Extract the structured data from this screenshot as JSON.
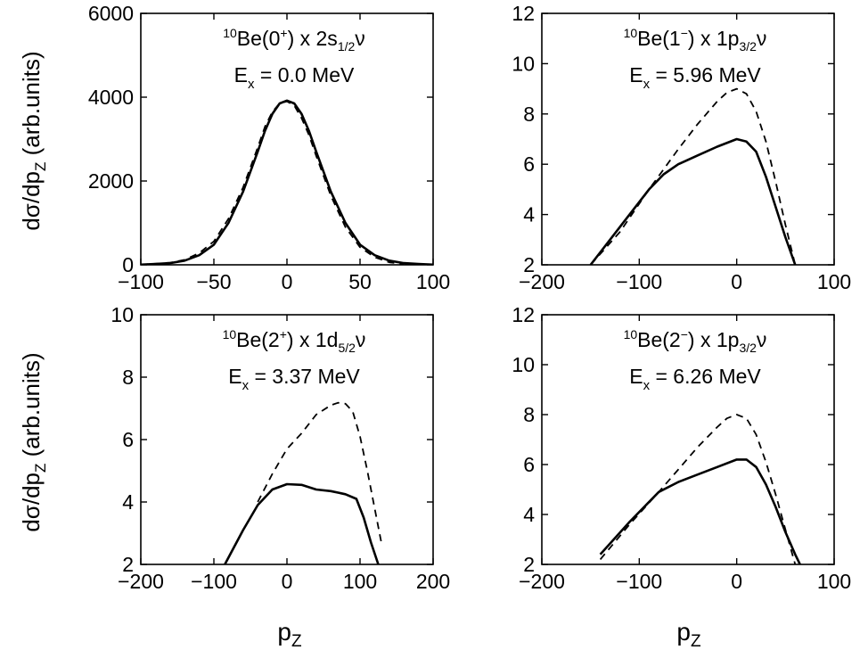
{
  "figure": {
    "ylabel_text": "dσ/dp",
    "ylabel_sub": "Z",
    "ylabel_suffix": " (arb.units)",
    "xlabel_text": "p",
    "xlabel_sub": "Z"
  },
  "chart_data": [
    {
      "type": "line",
      "position": "top-left",
      "annotation": {
        "state": {
          "pre": "10",
          "base": "Be(0",
          "sup": "+",
          "post": ") x 2s",
          "sub": "1/2",
          "end": "ν"
        },
        "energy": {
          "base": "E",
          "sub": "x",
          "value": " = 0.0 MeV"
        }
      },
      "xlim": [
        -100,
        100
      ],
      "ylim": [
        0,
        6000
      ],
      "x_ticks": [
        -100,
        -50,
        0,
        50,
        100
      ],
      "y_ticks": [
        0,
        2000,
        4000,
        6000
      ],
      "x_tick_labels": [
        "−100",
        "−50",
        "0",
        "50",
        "100"
      ],
      "y_tick_labels": [
        "0",
        "2000",
        "4000",
        "6000"
      ],
      "series": [
        {
          "style": "solid",
          "x": [
            -100,
            -90,
            -80,
            -70,
            -60,
            -50,
            -40,
            -30,
            -20,
            -15,
            -10,
            -5,
            0,
            5,
            10,
            15,
            20,
            30,
            40,
            50,
            60,
            70,
            80,
            90,
            100
          ],
          "y": [
            5,
            20,
            40,
            100,
            230,
            480,
            1000,
            1750,
            2700,
            3200,
            3600,
            3850,
            3920,
            3850,
            3600,
            3200,
            2700,
            1750,
            1000,
            480,
            230,
            100,
            40,
            20,
            5
          ]
        },
        {
          "style": "dashed",
          "x": [
            -100,
            -90,
            -80,
            -70,
            -60,
            -50,
            -40,
            -30,
            -20,
            -15,
            -10,
            -5,
            0,
            5,
            10,
            15,
            20,
            30,
            40,
            50,
            60,
            70,
            80
          ],
          "y": [
            5,
            25,
            50,
            120,
            280,
            560,
            1100,
            1850,
            2800,
            3300,
            3650,
            3850,
            3900,
            3800,
            3500,
            3100,
            2600,
            1650,
            900,
            420,
            180,
            60,
            15
          ]
        }
      ]
    },
    {
      "type": "line",
      "position": "top-right",
      "annotation": {
        "state": {
          "pre": "10",
          "base": "Be(1",
          "sup": "−",
          "post": ") x 1p",
          "sub": "3/2",
          "end": "ν"
        },
        "energy": {
          "base": "E",
          "sub": "x",
          "value": " = 5.96 MeV"
        }
      },
      "xlim": [
        -200,
        100
      ],
      "ylim": [
        2,
        12
      ],
      "x_ticks": [
        -200,
        -100,
        0,
        100
      ],
      "y_ticks": [
        2,
        4,
        6,
        8,
        10,
        12
      ],
      "x_tick_labels": [
        "−200",
        "−100",
        "0",
        "100"
      ],
      "y_tick_labels": [
        "2",
        "4",
        "6",
        "8",
        "10",
        "12"
      ],
      "series": [
        {
          "style": "solid",
          "x": [
            -150,
            -120,
            -90,
            -75,
            -60,
            -40,
            -20,
            0,
            10,
            20,
            30,
            40,
            50,
            60
          ],
          "y": [
            2,
            3.5,
            5.0,
            5.6,
            6.0,
            6.35,
            6.7,
            7.0,
            6.9,
            6.5,
            5.5,
            4.3,
            3.1,
            2.0
          ]
        },
        {
          "style": "dashed",
          "x": [
            -150,
            -120,
            -90,
            -60,
            -40,
            -20,
            -10,
            0,
            10,
            20,
            30,
            40,
            50,
            60
          ],
          "y": [
            2,
            3.3,
            5.0,
            6.6,
            7.6,
            8.5,
            8.85,
            9.0,
            8.8,
            8.1,
            6.9,
            5.3,
            3.6,
            2.0
          ]
        }
      ]
    },
    {
      "type": "line",
      "position": "bottom-left",
      "annotation": {
        "state": {
          "pre": "10",
          "base": "Be(2",
          "sup": "+",
          "post": ") x 1d",
          "sub": "5/2",
          "end": "ν"
        },
        "energy": {
          "base": "E",
          "sub": "x",
          "value": " = 3.37 MeV"
        }
      },
      "xlim": [
        -200,
        200
      ],
      "ylim": [
        2,
        10
      ],
      "x_ticks": [
        -200,
        -100,
        0,
        100,
        200
      ],
      "y_ticks": [
        2,
        4,
        6,
        8,
        10
      ],
      "x_tick_labels": [
        "−200",
        "−100",
        "0",
        "100",
        "200"
      ],
      "y_tick_labels": [
        "2",
        "4",
        "6",
        "8",
        "10"
      ],
      "series": [
        {
          "style": "solid",
          "x": [
            -85,
            -60,
            -40,
            -20,
            0,
            20,
            40,
            60,
            80,
            95,
            105,
            115,
            125
          ],
          "y": [
            2,
            3.1,
            3.9,
            4.4,
            4.57,
            4.55,
            4.4,
            4.35,
            4.25,
            4.1,
            3.5,
            2.7,
            2.0
          ]
        },
        {
          "style": "dashed",
          "x": [
            -40,
            -20,
            0,
            20,
            40,
            60,
            70,
            80,
            90,
            100,
            110,
            120,
            130
          ],
          "y": [
            4.0,
            4.9,
            5.7,
            6.2,
            6.8,
            7.1,
            7.18,
            7.15,
            6.9,
            6.1,
            5.0,
            3.8,
            2.6
          ]
        }
      ]
    },
    {
      "type": "line",
      "position": "bottom-right",
      "annotation": {
        "state": {
          "pre": "10",
          "base": "Be(2",
          "sup": "−",
          "post": ") x 1p",
          "sub": "3/2",
          "end": "ν"
        },
        "energy": {
          "base": "E",
          "sub": "x",
          "value": " = 6.26 MeV"
        }
      },
      "xlim": [
        -200,
        100
      ],
      "ylim": [
        2,
        12
      ],
      "x_ticks": [
        -200,
        -100,
        0,
        100
      ],
      "y_ticks": [
        2,
        4,
        6,
        8,
        10,
        12
      ],
      "x_tick_labels": [
        "−200",
        "−100",
        "0",
        "100"
      ],
      "y_tick_labels": [
        "2",
        "4",
        "6",
        "8",
        "10",
        "12"
      ],
      "series": [
        {
          "style": "solid",
          "x": [
            -140,
            -110,
            -80,
            -60,
            -40,
            -20,
            0,
            10,
            20,
            30,
            40,
            50,
            60,
            65
          ],
          "y": [
            2.4,
            3.7,
            4.9,
            5.3,
            5.6,
            5.9,
            6.2,
            6.2,
            5.9,
            5.2,
            4.3,
            3.3,
            2.4,
            2.0
          ]
        },
        {
          "style": "dashed",
          "x": [
            -140,
            -110,
            -80,
            -60,
            -40,
            -20,
            -10,
            0,
            10,
            20,
            30,
            40,
            50,
            60
          ],
          "y": [
            2.2,
            3.6,
            4.9,
            5.8,
            6.7,
            7.5,
            7.85,
            8.0,
            7.85,
            7.2,
            6.1,
            4.8,
            3.4,
            2.0
          ]
        }
      ]
    }
  ]
}
